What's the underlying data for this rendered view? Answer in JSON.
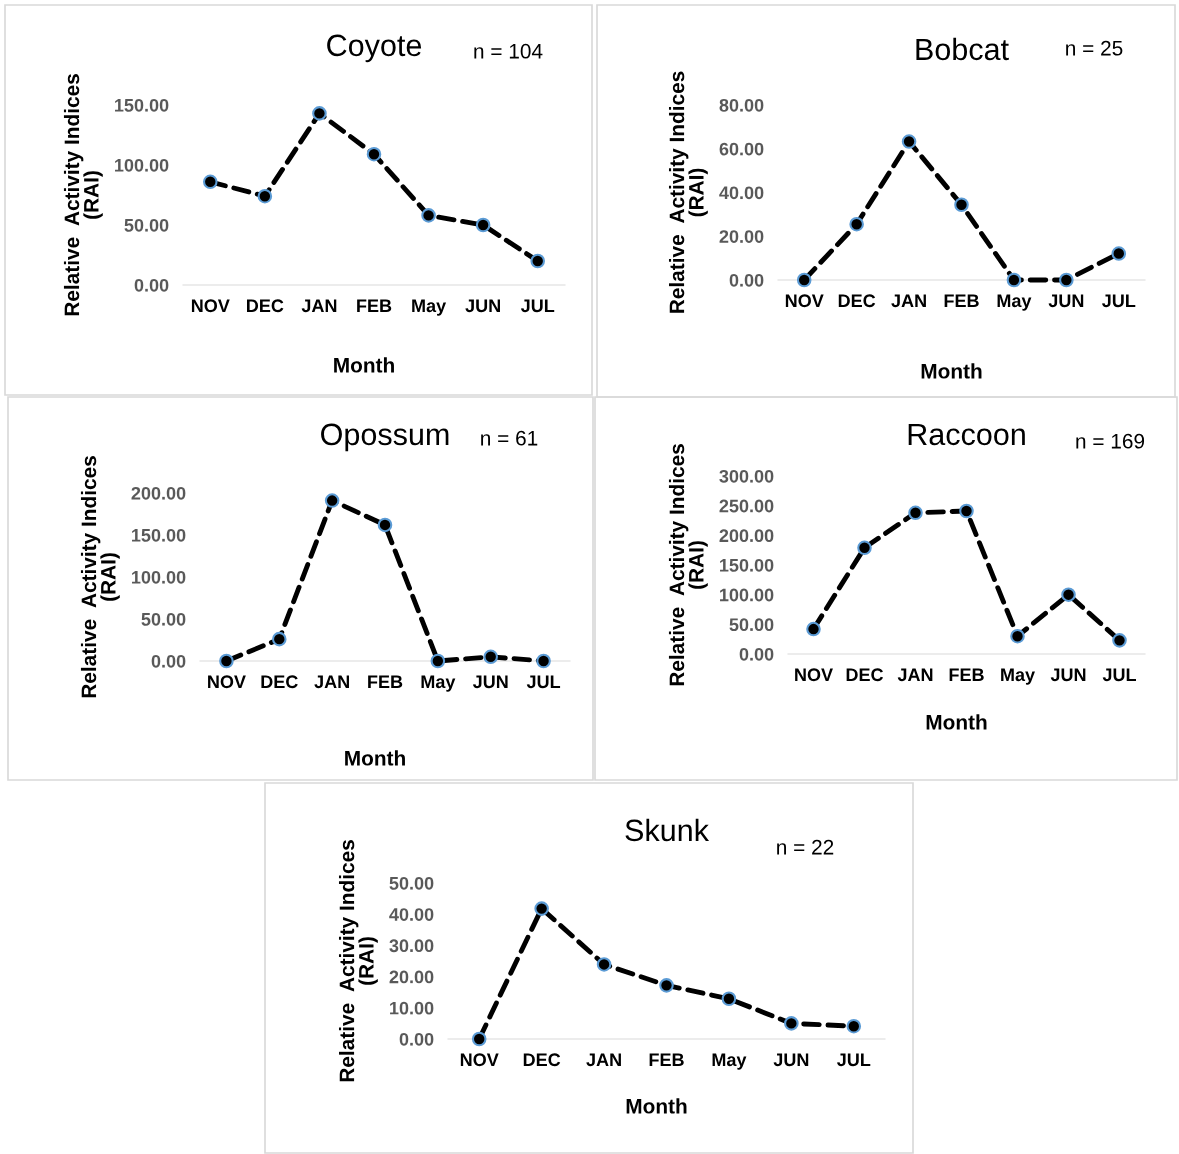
{
  "chart_data": [
    {
      "type": "line",
      "title": "Coyote",
      "annotations": [
        "n = 104"
      ],
      "xlabel": "Month",
      "ylabel": "Relative  Activity Indices\n(RAI)",
      "categories": [
        "NOV",
        "DEC",
        "JAN",
        "FEB",
        "May",
        "JUN",
        "JUL"
      ],
      "series": [
        {
          "color": "#000000",
          "values": [
            86,
            74,
            143,
            109,
            58,
            50,
            20
          ]
        }
      ],
      "ylim": [
        0,
        150
      ],
      "yticks": [
        {
          "value": 0,
          "label": "0.00"
        },
        {
          "value": 50,
          "label": "50.00"
        },
        {
          "value": 100,
          "label": "100.00"
        },
        {
          "value": 150,
          "label": "150.00"
        }
      ],
      "marker": "circle",
      "line_style": "dashed",
      "grid": false,
      "legend": false
    },
    {
      "type": "line",
      "title": "Bobcat",
      "annotations": [
        "n = 25"
      ],
      "xlabel": "Month",
      "ylabel": "Relative  Activity Indices\n(RAI)",
      "categories": [
        "NOV",
        "DEC",
        "JAN",
        "FEB",
        "May",
        "JUN",
        "JUL"
      ],
      "series": [
        {
          "color": "#000000",
          "values": [
            0,
            25.5,
            63.3,
            34.4,
            0,
            0,
            12.1
          ]
        }
      ],
      "ylim": [
        0,
        80
      ],
      "yticks": [
        {
          "value": 0,
          "label": "0.00"
        },
        {
          "value": 20,
          "label": "20.00"
        },
        {
          "value": 40,
          "label": "40.00"
        },
        {
          "value": 60,
          "label": "60.00"
        },
        {
          "value": 80,
          "label": "80.00"
        }
      ],
      "marker": "circle",
      "line_style": "dashed",
      "grid": false,
      "legend": false
    },
    {
      "type": "line",
      "title": "Opossum",
      "annotations": [
        "n = 61"
      ],
      "xlabel": "Month",
      "ylabel": "Relative  Activity Indices\n(RAI)",
      "categories": [
        "NOV",
        "DEC",
        "JAN",
        "FEB",
        "May",
        "JUN",
        "JUL"
      ],
      "series": [
        {
          "color": "#000000",
          "values": [
            0,
            26,
            191,
            162,
            0,
            5,
            0
          ]
        }
      ],
      "ylim": [
        0,
        200
      ],
      "yticks": [
        {
          "value": 0,
          "label": "0.00"
        },
        {
          "value": 50,
          "label": "50.00"
        },
        {
          "value": 100,
          "label": "100.00"
        },
        {
          "value": 150,
          "label": "150.00"
        },
        {
          "value": 200,
          "label": "200.00"
        }
      ],
      "marker": "circle",
      "line_style": "dashed",
      "grid": false,
      "legend": false
    },
    {
      "type": "line",
      "title": "Raccoon",
      "annotations": [
        "n = 169"
      ],
      "xlabel": "Month",
      "ylabel": "Relative  Activity Indices\n(RAI)",
      "categories": [
        "NOV",
        "DEC",
        "JAN",
        "FEB",
        "May",
        "JUN",
        "JUL"
      ],
      "series": [
        {
          "color": "#000000",
          "values": [
            42,
            179,
            238,
            241,
            30,
            100,
            23
          ]
        }
      ],
      "ylim": [
        0,
        300
      ],
      "yticks": [
        {
          "value": 0,
          "label": "0.00"
        },
        {
          "value": 50,
          "label": "50.00"
        },
        {
          "value": 100,
          "label": "100.00"
        },
        {
          "value": 150,
          "label": "150.00"
        },
        {
          "value": 200,
          "label": "200.00"
        },
        {
          "value": 250,
          "label": "250.00"
        },
        {
          "value": 300,
          "label": "300.00"
        }
      ],
      "marker": "circle",
      "line_style": "dashed",
      "grid": false,
      "legend": false
    },
    {
      "type": "line",
      "title": "Skunk",
      "annotations": [
        "n = 22"
      ],
      "xlabel": "Month",
      "ylabel": "Relative  Activity Indices\n(RAI)",
      "categories": [
        "NOV",
        "DEC",
        "JAN",
        "FEB",
        "May",
        "JUN",
        "JUL"
      ],
      "series": [
        {
          "color": "#000000",
          "values": [
            0,
            41.8,
            23.9,
            17.2,
            12.9,
            5.0,
            4.1
          ]
        }
      ],
      "ylim": [
        0,
        50
      ],
      "yticks": [
        {
          "value": 0,
          "label": "0.00"
        },
        {
          "value": 10,
          "label": "10.00"
        },
        {
          "value": 20,
          "label": "20.00"
        },
        {
          "value": 30,
          "label": "30.00"
        },
        {
          "value": 40,
          "label": "40.00"
        },
        {
          "value": 50,
          "label": "50.00"
        }
      ],
      "marker": "circle",
      "line_style": "dashed",
      "grid": false,
      "legend": false
    }
  ]
}
